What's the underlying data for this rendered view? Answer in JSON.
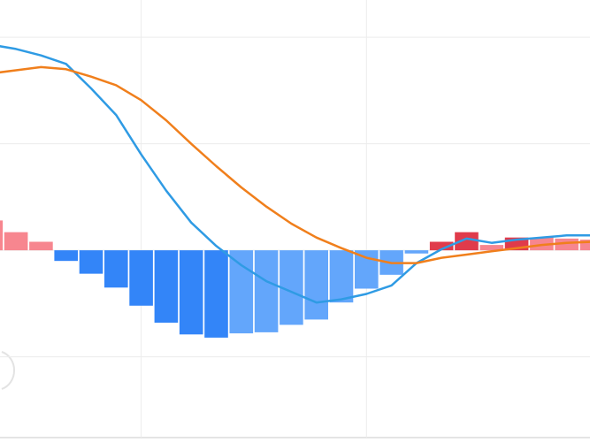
{
  "chart_data": {
    "type": "macd",
    "x": [
      0,
      1,
      2,
      3,
      4,
      5,
      6,
      7,
      8,
      9,
      10,
      11,
      12,
      13,
      14,
      15,
      16,
      17,
      18,
      19,
      20,
      21,
      22,
      23,
      24
    ],
    "xlim": [
      0.36,
      23.93
    ],
    "xticks": [
      6,
      15
    ],
    "ylim": [
      -1.8,
      2.35
    ],
    "yticks": [
      -1,
      0,
      1,
      2
    ],
    "grid": true,
    "histogram": {
      "values": [
        0.28,
        0.17,
        0.08,
        -0.1,
        -0.22,
        -0.35,
        -0.52,
        -0.68,
        -0.79,
        -0.82,
        -0.78,
        -0.77,
        -0.7,
        -0.65,
        -0.49,
        -0.36,
        -0.23,
        -0.03,
        0.08,
        0.17,
        0.05,
        0.12,
        0.12,
        0.11,
        0.1
      ],
      "colors": [
        "#f7868f",
        "#f7868f",
        "#f7868f",
        "#3385f8",
        "#3385f8",
        "#3385f8",
        "#3385f8",
        "#3385f8",
        "#3385f8",
        "#3385f8",
        "#63a6fb",
        "#63a6fb",
        "#63a6fb",
        "#63a6fb",
        "#63a6fb",
        "#63a6fb",
        "#63a6fb",
        "#63a6fb",
        "#e03b4b",
        "#e03b4b",
        "#f7868f",
        "#e03b4b",
        "#f7868f",
        "#f7868f",
        "#f7868f"
      ]
    },
    "series": [
      {
        "color": "#2f9be4",
        "values": [
          1.93,
          1.89,
          1.83,
          1.75,
          1.52,
          1.27,
          0.9,
          0.56,
          0.26,
          0.04,
          -0.14,
          -0.29,
          -0.39,
          -0.49,
          -0.46,
          -0.41,
          -0.33,
          -0.12,
          0.01,
          0.11,
          0.07,
          0.1,
          0.12,
          0.14,
          0.14
        ]
      },
      {
        "color": "#f07f1c",
        "values": [
          1.66,
          1.69,
          1.72,
          1.7,
          1.63,
          1.55,
          1.41,
          1.22,
          1.0,
          0.79,
          0.59,
          0.41,
          0.25,
          0.12,
          0.02,
          -0.07,
          -0.12,
          -0.12,
          -0.07,
          -0.04,
          -0.01,
          0.02,
          0.05,
          0.07,
          0.08
        ]
      }
    ]
  }
}
